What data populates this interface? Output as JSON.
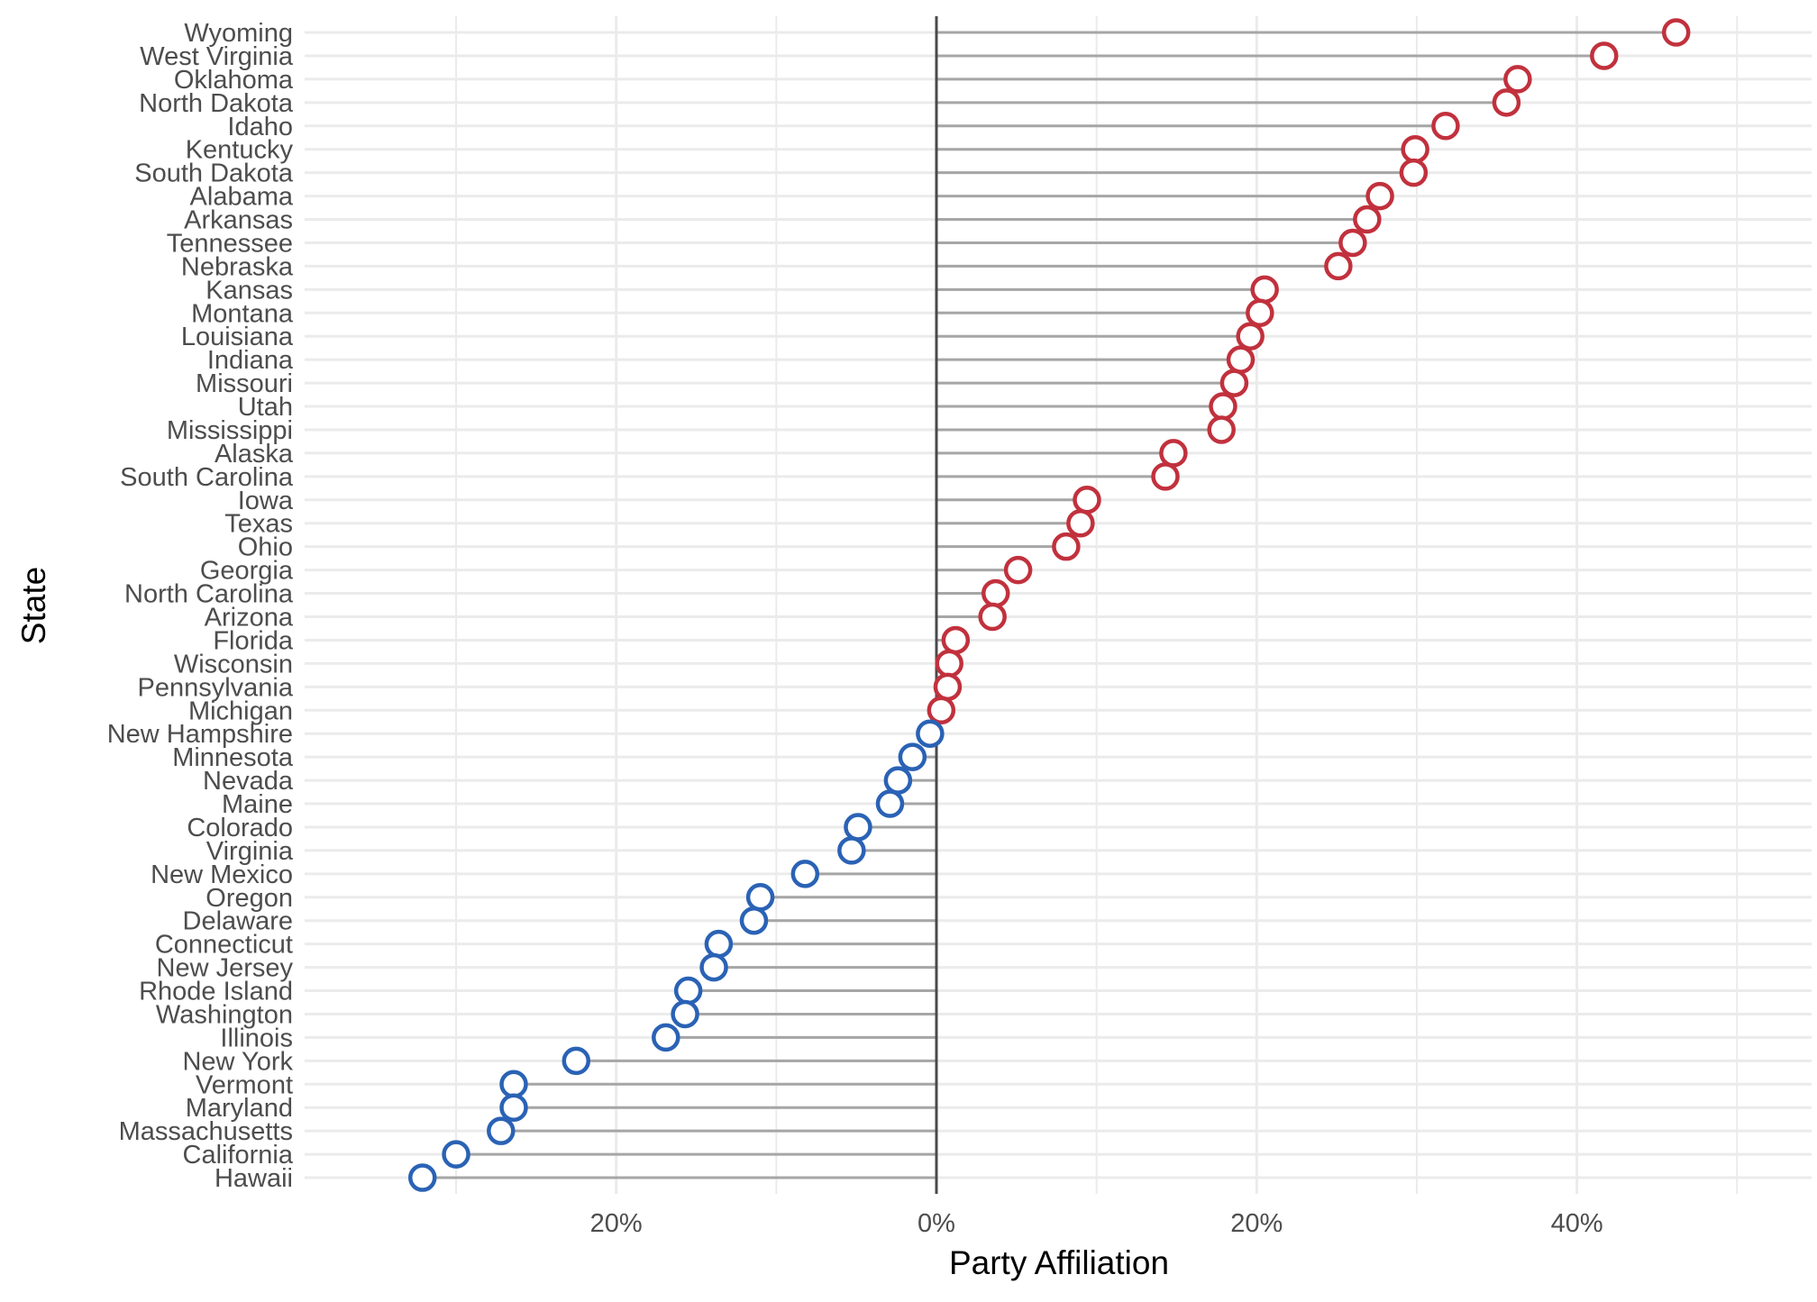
{
  "chart_data": {
    "type": "lollipop",
    "xlabel": "Party Affiliation",
    "ylabel": "State",
    "xlim": [
      -0.39,
      0.54
    ],
    "xticks": [
      {
        "value": -0.2,
        "label": "20%"
      },
      {
        "value": 0.0,
        "label": "0%"
      },
      {
        "value": 0.2,
        "label": "20%"
      },
      {
        "value": 0.4,
        "label": "40%"
      }
    ],
    "colors": {
      "republican": "#c1313d",
      "democrat": "#2a62b5",
      "stem": "#a6a6a6",
      "zero_line": "#4a4a4a",
      "grid": "#ebebeb"
    },
    "states": [
      {
        "name": "Wyoming",
        "value": 0.462
      },
      {
        "name": "West Virginia",
        "value": 0.417
      },
      {
        "name": "Oklahoma",
        "value": 0.363
      },
      {
        "name": "North Dakota",
        "value": 0.356
      },
      {
        "name": "Idaho",
        "value": 0.318
      },
      {
        "name": "Kentucky",
        "value": 0.299
      },
      {
        "name": "South Dakota",
        "value": 0.298
      },
      {
        "name": "Alabama",
        "value": 0.277
      },
      {
        "name": "Arkansas",
        "value": 0.269
      },
      {
        "name": "Tennessee",
        "value": 0.26
      },
      {
        "name": "Nebraska",
        "value": 0.251
      },
      {
        "name": "Kansas",
        "value": 0.205
      },
      {
        "name": "Montana",
        "value": 0.202
      },
      {
        "name": "Louisiana",
        "value": 0.196
      },
      {
        "name": "Indiana",
        "value": 0.19
      },
      {
        "name": "Missouri",
        "value": 0.186
      },
      {
        "name": "Utah",
        "value": 0.179
      },
      {
        "name": "Mississippi",
        "value": 0.178
      },
      {
        "name": "Alaska",
        "value": 0.148
      },
      {
        "name": "South Carolina",
        "value": 0.143
      },
      {
        "name": "Iowa",
        "value": 0.094
      },
      {
        "name": "Texas",
        "value": 0.09
      },
      {
        "name": "Ohio",
        "value": 0.081
      },
      {
        "name": "Georgia",
        "value": 0.051
      },
      {
        "name": "North Carolina",
        "value": 0.037
      },
      {
        "name": "Arizona",
        "value": 0.035
      },
      {
        "name": "Florida",
        "value": 0.012
      },
      {
        "name": "Wisconsin",
        "value": 0.008
      },
      {
        "name": "Pennsylvania",
        "value": 0.007
      },
      {
        "name": "Michigan",
        "value": 0.003
      },
      {
        "name": "New Hampshire",
        "value": -0.004
      },
      {
        "name": "Minnesota",
        "value": -0.015
      },
      {
        "name": "Nevada",
        "value": -0.024
      },
      {
        "name": "Maine",
        "value": -0.029
      },
      {
        "name": "Colorado",
        "value": -0.049
      },
      {
        "name": "Virginia",
        "value": -0.053
      },
      {
        "name": "New Mexico",
        "value": -0.082
      },
      {
        "name": "Oregon",
        "value": -0.11
      },
      {
        "name": "Delaware",
        "value": -0.114
      },
      {
        "name": "Connecticut",
        "value": -0.136
      },
      {
        "name": "New Jersey",
        "value": -0.139
      },
      {
        "name": "Rhode Island",
        "value": -0.155
      },
      {
        "name": "Washington",
        "value": -0.157
      },
      {
        "name": "Illinois",
        "value": -0.169
      },
      {
        "name": "New York",
        "value": -0.225
      },
      {
        "name": "Vermont",
        "value": -0.264
      },
      {
        "name": "Maryland",
        "value": -0.264
      },
      {
        "name": "Massachusetts",
        "value": -0.272
      },
      {
        "name": "California",
        "value": -0.3
      },
      {
        "name": "Hawaii",
        "value": -0.321
      }
    ]
  }
}
